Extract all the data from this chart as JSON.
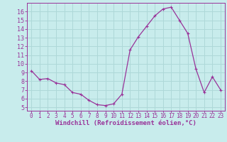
{
  "hours": [
    0,
    1,
    2,
    3,
    4,
    5,
    6,
    7,
    8,
    9,
    10,
    11,
    12,
    13,
    14,
    15,
    16,
    17,
    18,
    19,
    20,
    21,
    22,
    23
  ],
  "values": [
    9.2,
    8.2,
    8.3,
    7.8,
    7.6,
    6.7,
    6.5,
    5.8,
    5.3,
    5.2,
    5.4,
    6.5,
    11.6,
    13.1,
    14.3,
    15.5,
    16.3,
    16.5,
    15.0,
    13.5,
    9.4,
    6.7,
    8.5,
    7.0
  ],
  "line_color": "#993399",
  "marker": "+",
  "marker_size": 3,
  "marker_linewidth": 0.8,
  "linewidth": 0.9,
  "bg_color": "#c8ecec",
  "grid_color": "#aed8d8",
  "xlabel": "Windchill (Refroidissement éolien,°C)",
  "xlabel_color": "#993399",
  "xlabel_fontsize": 6.5,
  "tick_color": "#993399",
  "ytick_fontsize": 6,
  "xtick_fontsize": 5.5,
  "ylim": [
    4.6,
    17.0
  ],
  "yticks": [
    5,
    6,
    7,
    8,
    9,
    10,
    11,
    12,
    13,
    14,
    15,
    16
  ],
  "xticks": [
    0,
    1,
    2,
    3,
    4,
    5,
    6,
    7,
    8,
    9,
    10,
    11,
    12,
    13,
    14,
    15,
    16,
    17,
    18,
    19,
    20,
    21,
    22,
    23
  ],
  "axis_color": "#993399",
  "spine_color": "#993399"
}
